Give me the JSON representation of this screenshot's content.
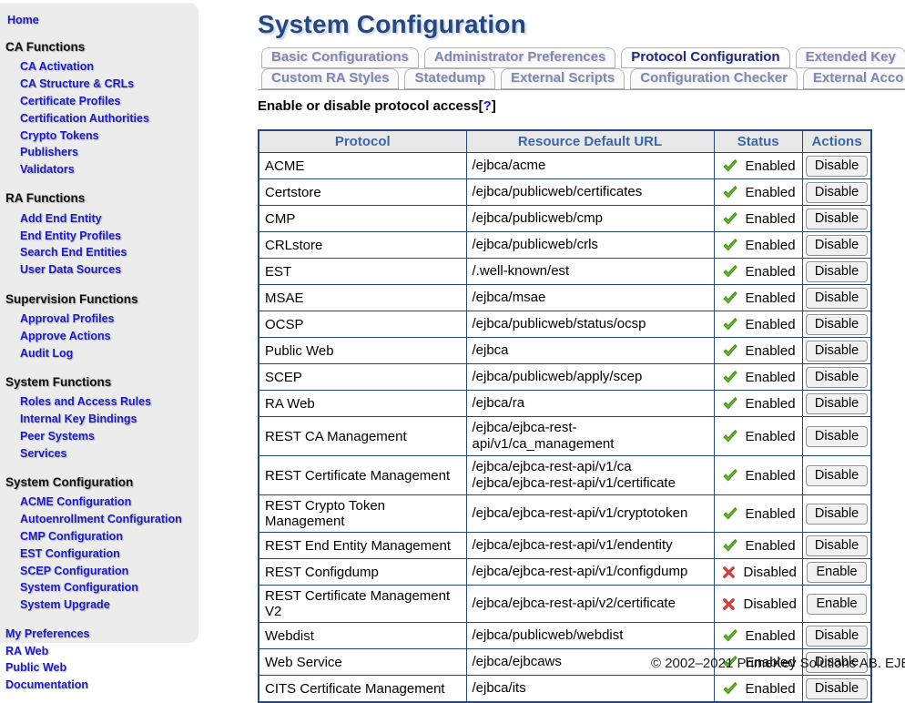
{
  "colors": {
    "title_blue": "#26487f",
    "link_blue": "#1c1cc4",
    "header_text_blue": "#3c67a5",
    "table_border": "#25497c",
    "enabled_green": "#5fae27",
    "disabled_red": "#cf4040",
    "sidebar_bg": "#ececec"
  },
  "sidebar": {
    "home": "Home",
    "groups": [
      {
        "heading": "CA Functions",
        "items": [
          "CA Activation",
          "CA Structure & CRLs",
          "Certificate Profiles",
          "Certification Authorities",
          "Crypto Tokens",
          "Publishers",
          "Validators"
        ]
      },
      {
        "heading": "RA Functions",
        "items": [
          "Add End Entity",
          "End Entity Profiles",
          "Search End Entities",
          "User Data Sources"
        ]
      },
      {
        "heading": "Supervision Functions",
        "items": [
          "Approval Profiles",
          "Approve Actions",
          "Audit Log"
        ]
      },
      {
        "heading": "System Functions",
        "items": [
          "Roles and Access Rules",
          "Internal Key Bindings",
          "Peer Systems",
          "Services"
        ]
      },
      {
        "heading": "System Configuration",
        "items": [
          "ACME Configuration",
          "Autoenrollment Configuration",
          "CMP Configuration",
          "EST Configuration",
          "SCEP Configuration",
          "System Configuration",
          "System Upgrade"
        ]
      }
    ],
    "footer_links": [
      "My Preferences",
      "RA Web",
      "Public Web",
      "Documentation"
    ]
  },
  "header": {
    "title": "System Configuration"
  },
  "tabs": {
    "row1": [
      {
        "label": "Basic Configurations",
        "active": false
      },
      {
        "label": "Administrator Preferences",
        "active": false
      },
      {
        "label": "Protocol Configuration",
        "active": true
      },
      {
        "label": "Extended Key",
        "active": false
      }
    ],
    "row2": [
      {
        "label": "Custom RA Styles",
        "active": false
      },
      {
        "label": "Statedump",
        "active": false
      },
      {
        "label": "External Scripts",
        "active": false
      },
      {
        "label": "Configuration Checker",
        "active": false
      },
      {
        "label": "External Acco",
        "active": false
      }
    ]
  },
  "section": {
    "prompt": "Enable or disable protocol access",
    "help_open": "[",
    "help_mark": "?",
    "help_close": "]"
  },
  "table": {
    "columns": [
      "Protocol",
      "Resource Default URL",
      "Status",
      "Actions"
    ],
    "icons": {
      "enabled": "check-icon",
      "disabled": "cross-icon"
    },
    "rows": [
      {
        "protocol": "ACME",
        "url": "/ejbca/acme",
        "enabled": true,
        "status": "Enabled",
        "action": "Disable"
      },
      {
        "protocol": "Certstore",
        "url": "/ejbca/publicweb/certificates",
        "enabled": true,
        "status": "Enabled",
        "action": "Disable"
      },
      {
        "protocol": "CMP",
        "url": "/ejbca/publicweb/cmp",
        "enabled": true,
        "status": "Enabled",
        "action": "Disable"
      },
      {
        "protocol": "CRLstore",
        "url": "/ejbca/publicweb/crls",
        "enabled": true,
        "status": "Enabled",
        "action": "Disable"
      },
      {
        "protocol": "EST",
        "url": "/.well-known/est",
        "enabled": true,
        "status": "Enabled",
        "action": "Disable"
      },
      {
        "protocol": "MSAE",
        "url": "/ejbca/msae",
        "enabled": true,
        "status": "Enabled",
        "action": "Disable"
      },
      {
        "protocol": "OCSP",
        "url": "/ejbca/publicweb/status/ocsp",
        "enabled": true,
        "status": "Enabled",
        "action": "Disable"
      },
      {
        "protocol": "Public Web",
        "url": "/ejbca",
        "enabled": true,
        "status": "Enabled",
        "action": "Disable"
      },
      {
        "protocol": "SCEP",
        "url": "/ejbca/publicweb/apply/scep",
        "enabled": true,
        "status": "Enabled",
        "action": "Disable"
      },
      {
        "protocol": "RA Web",
        "url": "/ejbca/ra",
        "enabled": true,
        "status": "Enabled",
        "action": "Disable"
      },
      {
        "protocol": "REST CA Management",
        "url": "/ejbca/ejbca-rest-api/v1/ca_management",
        "enabled": true,
        "status": "Enabled",
        "action": "Disable"
      },
      {
        "protocol": "REST Certificate Management",
        "url": "/ejbca/ejbca-rest-api/v1/ca\n/ejbca/ejbca-rest-api/v1/certificate",
        "enabled": true,
        "status": "Enabled",
        "action": "Disable"
      },
      {
        "protocol": "REST Crypto Token Management",
        "url": "/ejbca/ejbca-rest-api/v1/cryptotoken",
        "enabled": true,
        "status": "Enabled",
        "action": "Disable"
      },
      {
        "protocol": "REST End Entity Management",
        "url": "/ejbca/ejbca-rest-api/v1/endentity",
        "enabled": true,
        "status": "Enabled",
        "action": "Disable"
      },
      {
        "protocol": "REST Configdump",
        "url": "/ejbca/ejbca-rest-api/v1/configdump",
        "enabled": false,
        "status": "Disabled",
        "action": "Enable"
      },
      {
        "protocol": "REST Certificate Management V2",
        "url": "/ejbca/ejbca-rest-api/v2/certificate",
        "enabled": false,
        "status": "Disabled",
        "action": "Enable"
      },
      {
        "protocol": "Webdist",
        "url": "/ejbca/publicweb/webdist",
        "enabled": true,
        "status": "Enabled",
        "action": "Disable"
      },
      {
        "protocol": "Web Service",
        "url": "/ejbca/ejbcaws",
        "enabled": true,
        "status": "Enabled",
        "action": "Disable"
      },
      {
        "protocol": "CITS Certificate Management",
        "url": "/ejbca/its",
        "enabled": true,
        "status": "Enabled",
        "action": "Disable"
      }
    ]
  },
  "footer": {
    "copyright": "© 2002–2021 PrimeKey Solutions AB. EJB"
  }
}
